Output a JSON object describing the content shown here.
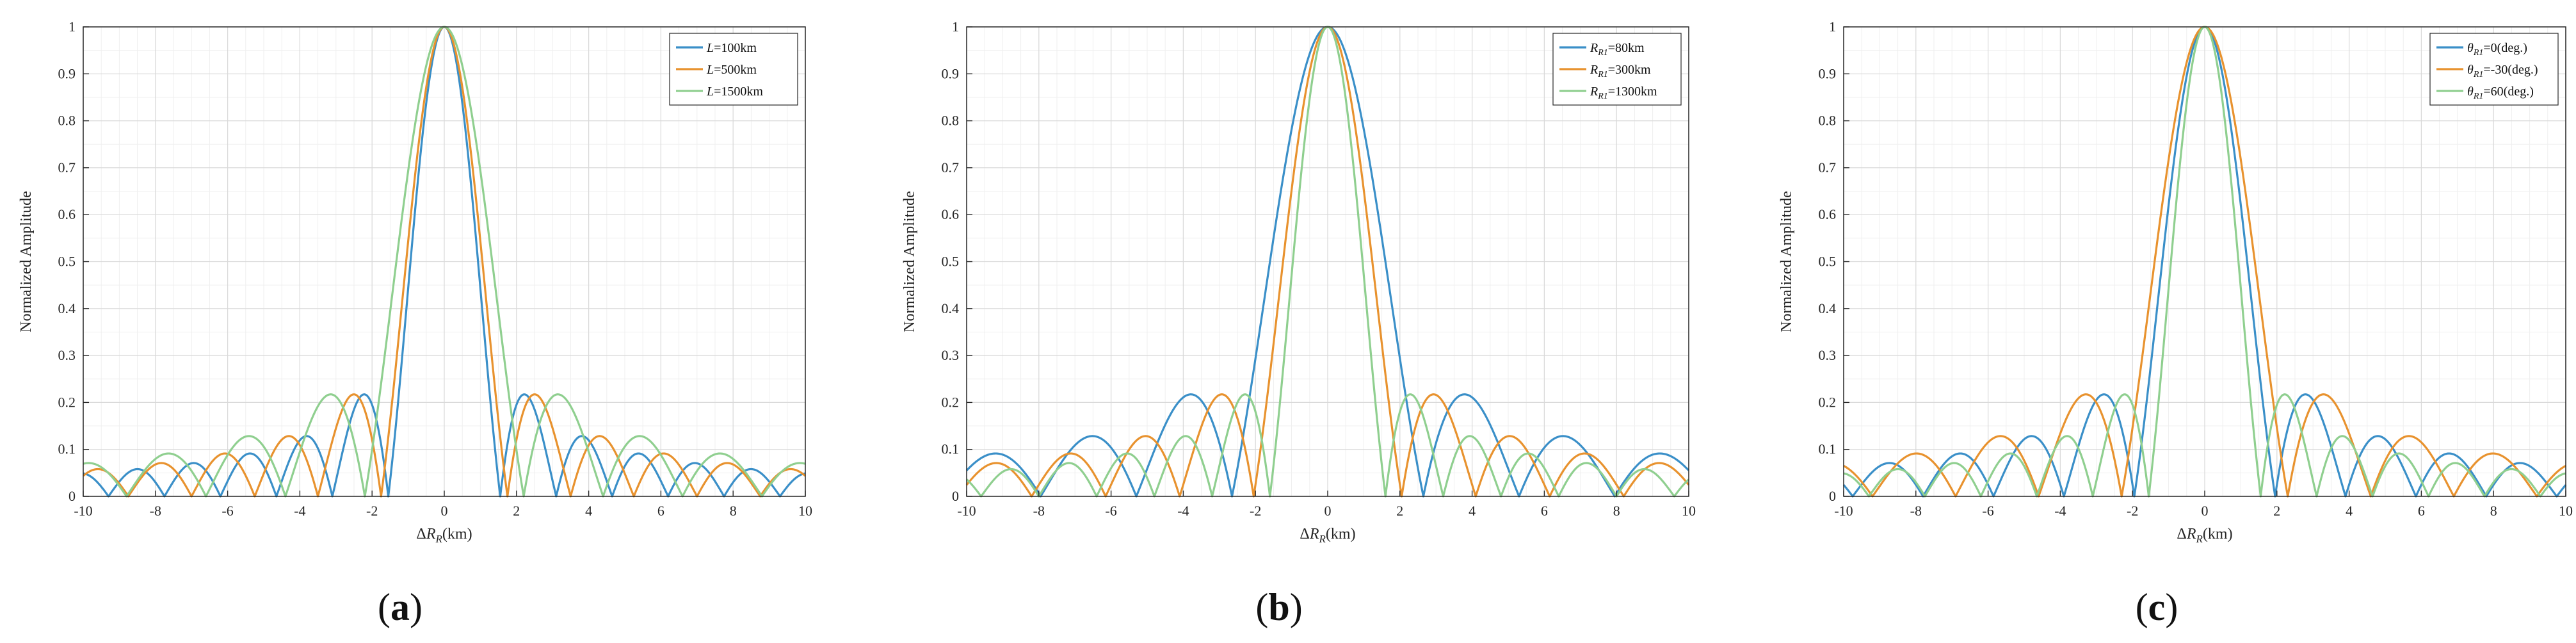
{
  "colors": {
    "series": [
      "#3a8fc8",
      "#e8922e",
      "#8fcf8f"
    ],
    "grid_major": "#d9d9d9",
    "grid_minor": "#efefef",
    "axes": "#262626"
  },
  "chart_data": [
    {
      "panel_label": "a",
      "type": "line",
      "xlabel": "ΔR_R(km)",
      "ylabel": "Normalized Amplitude",
      "xlim": [
        -10,
        10
      ],
      "ylim": [
        0,
        1
      ],
      "xticks": [
        "-10",
        "-8",
        "-6",
        "-4",
        "-2",
        "0",
        "2",
        "4",
        "6",
        "8",
        "10"
      ],
      "yticks": [
        "0",
        "0.1",
        "0.2",
        "0.3",
        "0.4",
        "0.5",
        "0.6",
        "0.7",
        "0.8",
        "0.9",
        "1"
      ],
      "grid": "on",
      "legend_position": "top-right",
      "series": [
        {
          "legend_prefix": "L",
          "legend_sub": "",
          "legend_suffix": "=100km",
          "first_null_km": 1.55
        },
        {
          "legend_prefix": "L",
          "legend_sub": "",
          "legend_suffix": "=500km",
          "first_null_km": 1.75
        },
        {
          "legend_prefix": "L",
          "legend_sub": "",
          "legend_suffix": "=1500km",
          "first_null_km": 2.2
        }
      ]
    },
    {
      "panel_label": "b",
      "type": "line",
      "xlabel": "ΔR_R(km)",
      "ylabel": "Normalized Amplitude",
      "xlim": [
        -10,
        10
      ],
      "ylim": [
        0,
        1
      ],
      "xticks": [
        "-10",
        "-8",
        "-6",
        "-4",
        "-2",
        "0",
        "2",
        "4",
        "6",
        "8",
        "10"
      ],
      "yticks": [
        "0",
        "0.1",
        "0.2",
        "0.3",
        "0.4",
        "0.5",
        "0.6",
        "0.7",
        "0.8",
        "0.9",
        "1"
      ],
      "grid": "on",
      "legend_position": "top-right",
      "series": [
        {
          "legend_prefix": "R",
          "legend_sub": "R1",
          "legend_suffix": "=80km",
          "first_null_km": 2.65
        },
        {
          "legend_prefix": "R",
          "legend_sub": "R1",
          "legend_suffix": "=300km",
          "first_null_km": 2.05
        },
        {
          "legend_prefix": "R",
          "legend_sub": "R1",
          "legend_suffix": "=1300km",
          "first_null_km": 1.6
        }
      ]
    },
    {
      "panel_label": "c",
      "type": "line",
      "xlabel": "ΔR_R(km)",
      "ylabel": "Normalized Amplitude",
      "xlim": [
        -10,
        10
      ],
      "ylim": [
        0,
        1
      ],
      "xticks": [
        "-10",
        "-8",
        "-6",
        "-4",
        "-2",
        "0",
        "2",
        "4",
        "6",
        "8",
        "10"
      ],
      "yticks": [
        "0",
        "0.1",
        "0.2",
        "0.3",
        "0.4",
        "0.5",
        "0.6",
        "0.7",
        "0.8",
        "0.9",
        "1"
      ],
      "grid": "on",
      "legend_position": "top-right",
      "series": [
        {
          "legend_prefix": "θ",
          "legend_sub": "R1",
          "legend_suffix": "=0(deg.)",
          "first_null_km": 1.95
        },
        {
          "legend_prefix": "θ",
          "legend_sub": "R1",
          "legend_suffix": "=-30(deg.)",
          "first_null_km": 2.3
        },
        {
          "legend_prefix": "θ",
          "legend_sub": "R1",
          "legend_suffix": "=60(deg.)",
          "first_null_km": 1.55
        }
      ]
    }
  ],
  "captions": [
    "(a)",
    "(b)",
    "(c)"
  ]
}
